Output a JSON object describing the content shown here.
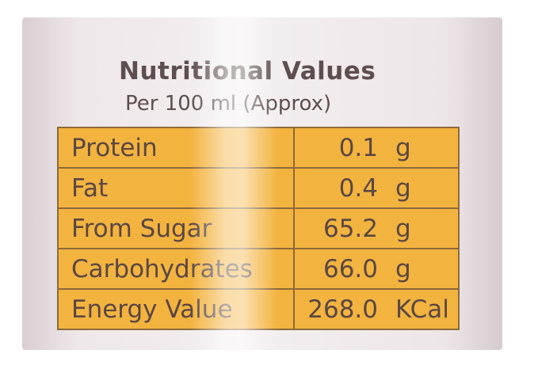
{
  "header": {
    "title": "Nutritional Values",
    "subtitle": "Per 100 ml (Approx)"
  },
  "table": {
    "rows": [
      [
        "Protein",
        "0.1",
        "g"
      ],
      [
        "Fat",
        "0.4",
        "g"
      ],
      [
        "From Sugar",
        "65.2",
        "g"
      ],
      [
        "Carbohydrates",
        "66.0",
        "g"
      ],
      [
        "Energy Value",
        "268.0",
        "KCal"
      ]
    ]
  }
}
